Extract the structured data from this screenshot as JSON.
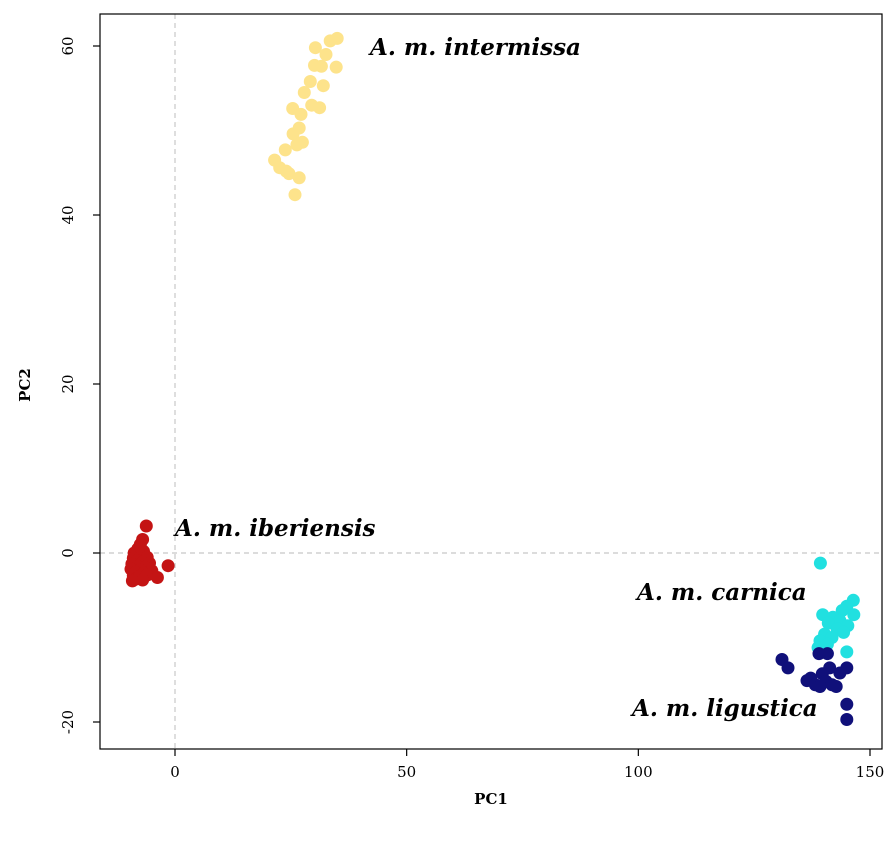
{
  "chart_data": {
    "type": "scatter",
    "xlabel": "PC1",
    "ylabel": "PC2",
    "xlim": [
      -16,
      150
    ],
    "ylim": [
      -23,
      63
    ],
    "x_ticks": [
      0,
      50,
      100,
      150
    ],
    "y_ticks": [
      -20,
      0,
      20,
      40,
      60
    ],
    "x_tick_labels": [
      "0",
      "50",
      "100",
      "150"
    ],
    "y_tick_labels": [
      "-20",
      "0",
      "20",
      "40",
      "60"
    ],
    "grid": false,
    "reference_lines": {
      "x": 0,
      "y": 0,
      "style": "dashed",
      "color": "#c8c8c8"
    },
    "series": [
      {
        "name": "A. m. intermissa",
        "color": "#fde38b",
        "points": [
          [
            35.0,
            60.9
          ],
          [
            33.5,
            60.6
          ],
          [
            32.6,
            59.0
          ],
          [
            30.3,
            59.8
          ],
          [
            34.8,
            57.5
          ],
          [
            31.6,
            57.6
          ],
          [
            30.1,
            57.7
          ],
          [
            29.2,
            55.8
          ],
          [
            32.0,
            55.3
          ],
          [
            27.9,
            54.5
          ],
          [
            29.5,
            53.0
          ],
          [
            25.4,
            52.6
          ],
          [
            31.2,
            52.7
          ],
          [
            27.2,
            51.9
          ],
          [
            26.8,
            50.3
          ],
          [
            25.5,
            49.6
          ],
          [
            27.5,
            48.6
          ],
          [
            26.3,
            48.3
          ],
          [
            23.8,
            47.7
          ],
          [
            21.5,
            46.5
          ],
          [
            22.6,
            45.6
          ],
          [
            24.0,
            45.2
          ],
          [
            24.6,
            44.9
          ],
          [
            26.8,
            44.4
          ],
          [
            25.9,
            42.4
          ]
        ]
      },
      {
        "name": "A. m. iberiensis",
        "color": "#c41414",
        "points": [
          [
            -6.2,
            3.2
          ],
          [
            -7.0,
            1.6
          ],
          [
            -7.5,
            1.0
          ],
          [
            -8.0,
            0.5
          ],
          [
            -6.8,
            0.2
          ],
          [
            -8.8,
            0.0
          ],
          [
            -7.5,
            -0.3
          ],
          [
            -9.0,
            -0.6
          ],
          [
            -6.0,
            -0.5
          ],
          [
            -8.2,
            -0.9
          ],
          [
            -7.0,
            -1.1
          ],
          [
            -9.3,
            -1.3
          ],
          [
            -5.5,
            -1.2
          ],
          [
            -8.0,
            -1.6
          ],
          [
            -6.5,
            -1.7
          ],
          [
            -9.5,
            -1.9
          ],
          [
            -7.5,
            -2.0
          ],
          [
            -1.5,
            -1.5
          ],
          [
            -5.0,
            -2.1
          ],
          [
            -8.5,
            -2.3
          ],
          [
            -6.8,
            -2.4
          ],
          [
            -9.0,
            -2.7
          ],
          [
            -7.8,
            -2.8
          ],
          [
            -6.0,
            -2.6
          ],
          [
            -3.8,
            -2.9
          ],
          [
            -8.5,
            -3.1
          ],
          [
            -7.0,
            -3.2
          ],
          [
            -9.2,
            -3.3
          ]
        ]
      },
      {
        "name": "A. m. carnica",
        "color": "#21e0e0",
        "points": [
          [
            139.3,
            -1.2
          ],
          [
            146.4,
            -5.6
          ],
          [
            145.0,
            -6.3
          ],
          [
            144.0,
            -6.8
          ],
          [
            146.5,
            -7.3
          ],
          [
            139.8,
            -7.3
          ],
          [
            142.0,
            -7.6
          ],
          [
            143.5,
            -8.0
          ],
          [
            141.0,
            -8.3
          ],
          [
            145.2,
            -8.6
          ],
          [
            142.9,
            -9.0
          ],
          [
            144.3,
            -9.4
          ],
          [
            140.2,
            -9.6
          ],
          [
            141.8,
            -10.0
          ],
          [
            139.2,
            -10.4
          ],
          [
            140.8,
            -10.8
          ],
          [
            138.8,
            -11.2
          ],
          [
            145.0,
            -11.7
          ]
        ]
      },
      {
        "name": "A. m. ligustica",
        "color": "#10107a",
        "points": [
          [
            139.0,
            -11.9
          ],
          [
            140.8,
            -11.9
          ],
          [
            131.0,
            -12.6
          ],
          [
            132.3,
            -13.6
          ],
          [
            141.3,
            -13.6
          ],
          [
            145.0,
            -13.6
          ],
          [
            143.5,
            -14.2
          ],
          [
            139.7,
            -14.3
          ],
          [
            137.2,
            -14.8
          ],
          [
            136.4,
            -15.1
          ],
          [
            140.5,
            -15.2
          ],
          [
            138.2,
            -15.6
          ],
          [
            139.2,
            -15.8
          ],
          [
            142.7,
            -15.8
          ],
          [
            141.8,
            -15.6
          ],
          [
            145.0,
            -17.9
          ],
          [
            145.0,
            -19.7
          ]
        ]
      }
    ]
  }
}
